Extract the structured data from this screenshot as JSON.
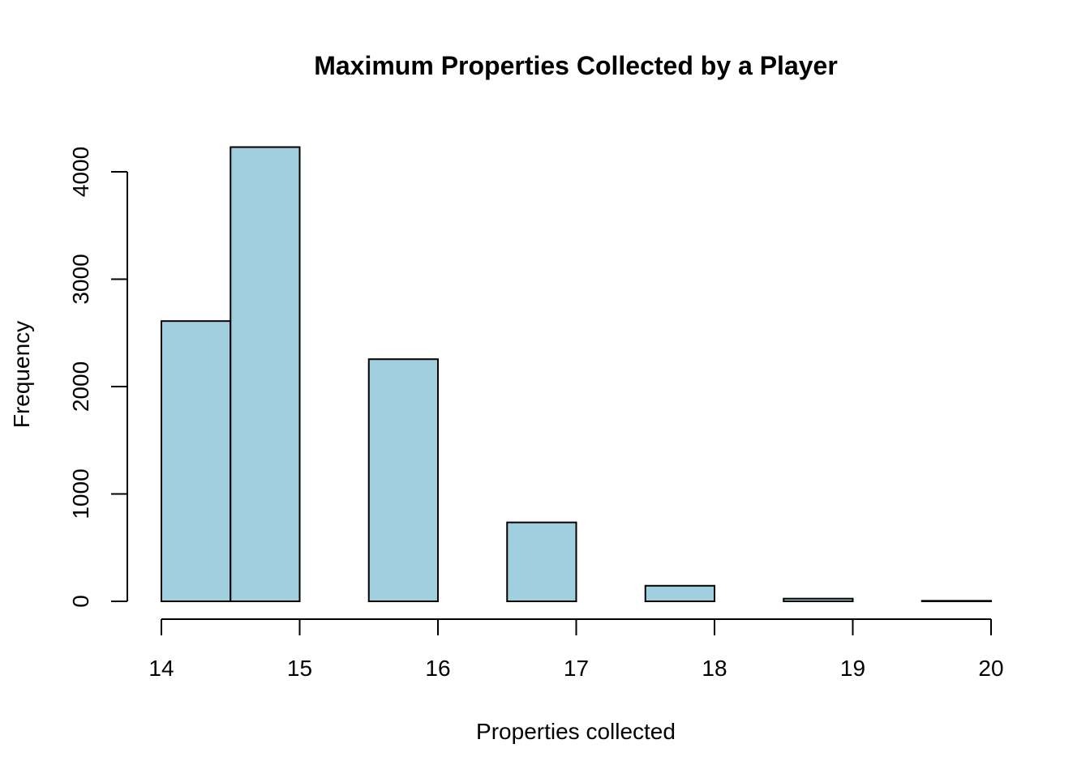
{
  "chart_data": {
    "type": "bar",
    "title": "Maximum Properties Collected by a Player",
    "xlabel": "Properties collected",
    "ylabel": "Frequency",
    "bin_edges": [
      14,
      14.5,
      15,
      15.5,
      16,
      16.5,
      17,
      17.5,
      18,
      18.5,
      19,
      19.5,
      20
    ],
    "values": [
      2610,
      4230,
      0,
      2255,
      0,
      735,
      0,
      145,
      0,
      25,
      0,
      5
    ],
    "x_ticks": [
      14,
      15,
      16,
      17,
      18,
      19,
      20
    ],
    "y_ticks": [
      0,
      1000,
      2000,
      3000,
      4000
    ],
    "xlim": [
      14,
      20
    ],
    "ylim": [
      0,
      4000
    ],
    "grid": false,
    "colors": {
      "bar_fill": "#a0cfe0",
      "bar_stroke": "#000000"
    }
  }
}
